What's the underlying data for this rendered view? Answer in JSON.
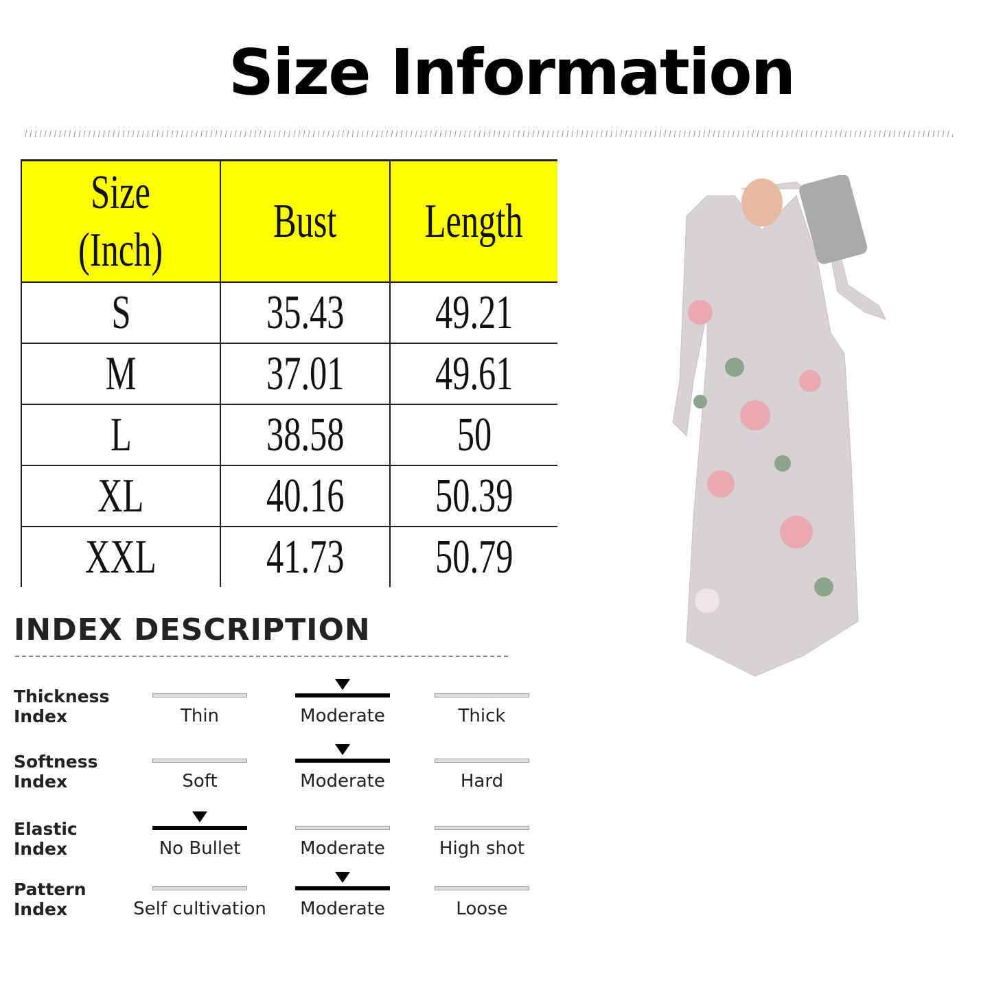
{
  "title": "Size Information",
  "size_table": {
    "headers": [
      "Size\n(Inch)",
      "Bust",
      "Length"
    ],
    "rows": [
      [
        "S",
        "35.43",
        "49.21"
      ],
      [
        "M",
        "37.01",
        "49.61"
      ],
      [
        "L",
        "38.58",
        "50"
      ],
      [
        "XL",
        "40.16",
        "50.39"
      ],
      [
        "XXL",
        "41.73",
        "50.79"
      ]
    ],
    "header_color": "#ffff00"
  },
  "index_description": {
    "title": "INDEX DESCRIPTION",
    "rows": [
      {
        "label": "Thickness\nIndex",
        "options": [
          "Thin",
          "Moderate",
          "Thick"
        ],
        "selected": 1
      },
      {
        "label": "Softness\nIndex",
        "options": [
          "Soft",
          "Moderate",
          "Hard"
        ],
        "selected": 1
      },
      {
        "label": "Elastic\nIndex",
        "options": [
          "No Bullet",
          "Moderate",
          "High shot"
        ],
        "selected": 0
      },
      {
        "label": "Pattern\nIndex",
        "options": [
          "Self cultivation",
          "Moderate",
          "Loose"
        ],
        "selected": 1
      }
    ]
  },
  "product_image": {
    "icon": "floral-maxi-dress-photo",
    "dress_color": "#d9d2d4",
    "flower_color": "#e8a9b0",
    "leaf_color": "#8aa58c"
  }
}
